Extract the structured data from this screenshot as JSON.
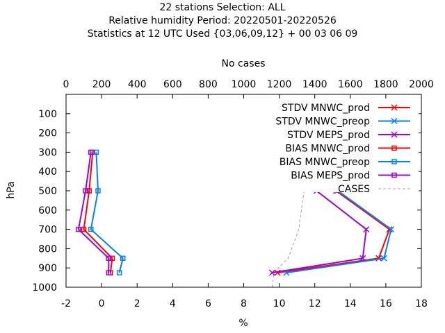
{
  "chart_data": {
    "type": "line",
    "title_lines": [
      "22 stations Selection: ALL",
      "Relative humidity  Period: 20220501-20220526",
      "Statistics at 12 UTC  Used {03,06,09,12} + 00 03 06 09"
    ],
    "xlabel": "%",
    "ylabel": "hPa",
    "x2label": "No cases",
    "xlim": [
      -2,
      18
    ],
    "x2lim": [
      0,
      2000
    ],
    "ylim": [
      1000,
      0
    ],
    "xticks": [
      "-2",
      "0",
      "2",
      "4",
      "6",
      "8",
      "10",
      "12",
      "14",
      "16",
      "18"
    ],
    "x2ticks": [
      "0",
      "200",
      "400",
      "600",
      "800",
      "1000",
      "1200",
      "1400",
      "1600",
      "1800",
      "2000"
    ],
    "yticks": [
      "100",
      "200",
      "300",
      "400",
      "500",
      "600",
      "700",
      "800",
      "900",
      "1000"
    ],
    "legend_position": "top-right",
    "series": [
      {
        "name": "STDV MNWC_prod",
        "color": "#ff0000",
        "marker": "x",
        "points": [
          [
            9.9,
            925
          ],
          [
            15.6,
            850
          ],
          [
            16.2,
            700
          ],
          [
            13.2,
            500
          ],
          [
            12.4,
            300
          ]
        ]
      },
      {
        "name": "STDV MNWC_preop",
        "color": "#0080ff",
        "marker": "x",
        "points": [
          [
            10.4,
            925
          ],
          [
            15.9,
            850
          ],
          [
            16.3,
            700
          ],
          [
            13.3,
            500
          ],
          [
            12.3,
            300
          ]
        ]
      },
      {
        "name": "STDV MEPS_prod",
        "color": "#a000e0",
        "marker": "x",
        "points": [
          [
            9.6,
            925
          ],
          [
            14.7,
            850
          ],
          [
            14.9,
            700
          ],
          [
            12.1,
            500
          ],
          [
            11.5,
            300
          ]
        ]
      },
      {
        "name": "BIAS MNWC_prod",
        "color": "#ff0000",
        "marker": "square",
        "points": [
          [
            0.5,
            925
          ],
          [
            0.6,
            850
          ],
          [
            -1.0,
            700
          ],
          [
            -0.7,
            500
          ],
          [
            -0.5,
            300
          ]
        ]
      },
      {
        "name": "BIAS MNWC_preop",
        "color": "#0080ff",
        "marker": "square",
        "points": [
          [
            1.0,
            925
          ],
          [
            1.2,
            850
          ],
          [
            -0.6,
            700
          ],
          [
            -0.2,
            500
          ],
          [
            -0.3,
            300
          ]
        ]
      },
      {
        "name": "BIAS MEPS_prod",
        "color": "#a000e0",
        "marker": "square",
        "points": [
          [
            0.4,
            925
          ],
          [
            0.4,
            850
          ],
          [
            -1.3,
            700
          ],
          [
            -0.9,
            500
          ],
          [
            -0.6,
            300
          ]
        ]
      }
    ],
    "cases": {
      "name": "CASES",
      "color": "#a0a0a0",
      "dash": true,
      "points": [
        [
          1160,
          1000
        ],
        [
          1170,
          925
        ],
        [
          1250,
          850
        ],
        [
          1310,
          700
        ],
        [
          1340,
          500
        ],
        [
          1370,
          400
        ],
        [
          1380,
          300
        ]
      ]
    }
  }
}
